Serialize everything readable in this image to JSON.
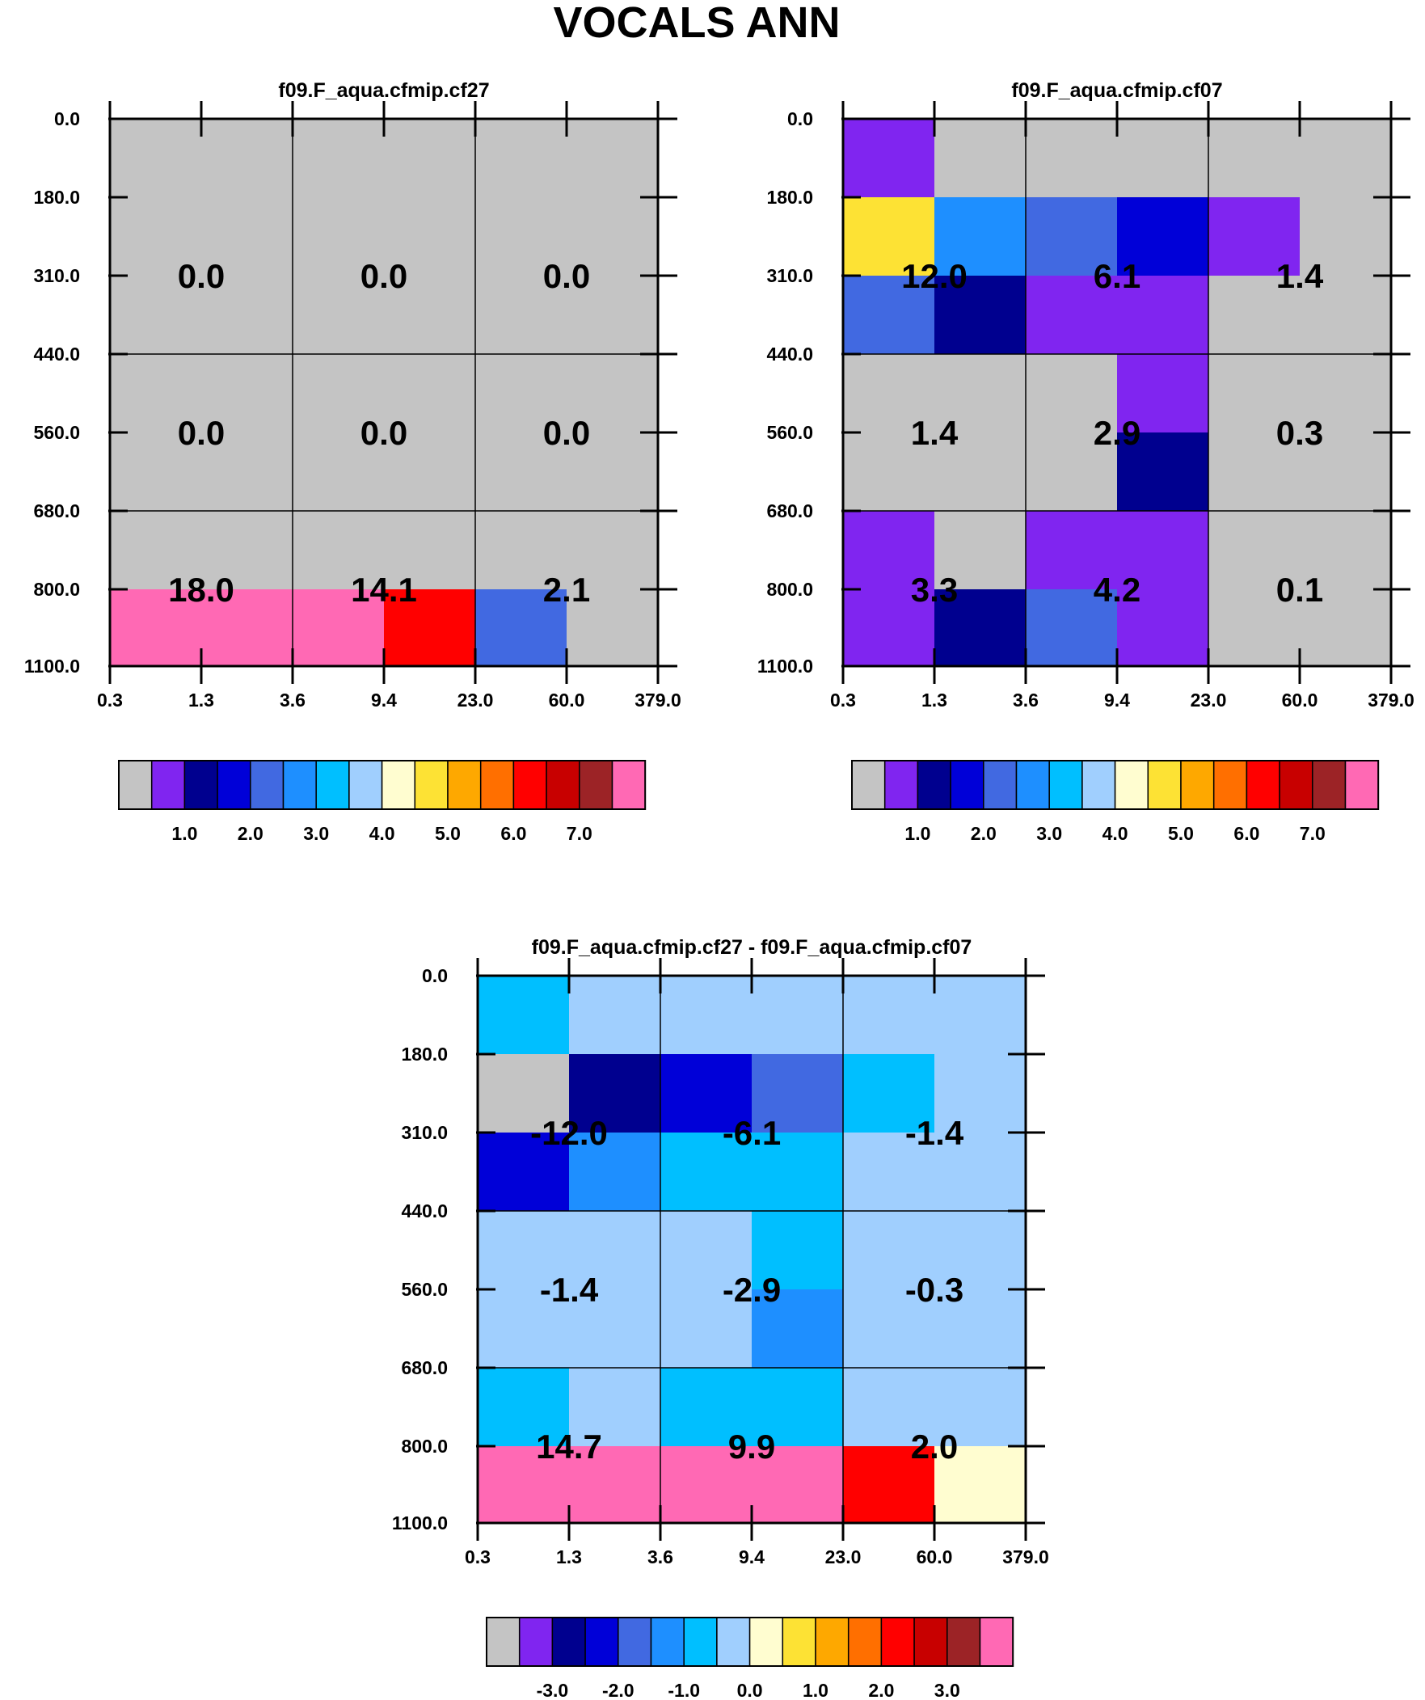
{
  "title": "VOCALS ANN",
  "chart_data": [
    {
      "type": "heatmap",
      "title": "f09.F_aqua.cfmip.cf27",
      "y_ticks": [
        "0.0",
        "180.0",
        "310.0",
        "440.0",
        "560.0",
        "680.0",
        "800.0",
        "1100.0"
      ],
      "x_ticks": [
        "0.3",
        "1.3",
        "3.6",
        "9.4",
        "23.0",
        "60.0",
        "379.0"
      ],
      "fine_colors": [
        [
          0,
          0,
          0,
          0,
          0,
          0
        ],
        [
          0,
          0,
          0,
          0,
          0,
          0
        ],
        [
          0,
          0,
          0,
          0,
          0,
          0
        ],
        [
          0,
          0,
          0,
          0,
          0,
          0
        ],
        [
          0,
          0,
          0,
          0,
          0,
          0
        ],
        [
          0,
          0,
          0,
          0,
          0,
          0
        ],
        [
          15,
          15,
          15,
          12,
          4,
          0
        ]
      ],
      "summary_values": [
        [
          "0.0",
          "0.0",
          "0.0"
        ],
        [
          "0.0",
          "0.0",
          "0.0"
        ],
        [
          "18.0",
          "14.1",
          "2.1"
        ]
      ],
      "colorbar_labels": [
        "1.0",
        "2.0",
        "3.0",
        "4.0",
        "5.0",
        "6.0",
        "7.0"
      ],
      "colorbar_colors": [
        "#c4c4c4",
        "#8025f0",
        "#00008f",
        "#0000d8",
        "#4169e1",
        "#1e8fff",
        "#00bfff",
        "#a0cffe",
        "#fffdd0",
        "#fde234",
        "#fea800",
        "#ff6f00",
        "#ff0000",
        "#c80000",
        "#9c2326",
        "#ff69b4"
      ]
    },
    {
      "type": "heatmap",
      "title": "f09.F_aqua.cfmip.cf07",
      "y_ticks": [
        "0.0",
        "180.0",
        "310.0",
        "440.0",
        "560.0",
        "680.0",
        "800.0",
        "1100.0"
      ],
      "x_ticks": [
        "0.3",
        "1.3",
        "3.6",
        "9.4",
        "23.0",
        "60.0",
        "379.0"
      ],
      "fine_colors": [
        [
          1,
          0,
          0,
          0,
          0,
          0
        ],
        [
          9,
          5,
          4,
          3,
          1,
          0
        ],
        [
          4,
          2,
          1,
          1,
          0,
          0
        ],
        [
          0,
          0,
          0,
          1,
          0,
          0
        ],
        [
          0,
          0,
          0,
          2,
          0,
          0
        ],
        [
          1,
          0,
          1,
          1,
          0,
          0
        ],
        [
          1,
          2,
          4,
          1,
          0,
          0
        ]
      ],
      "summary_values": [
        [
          "12.0",
          "6.1",
          "1.4"
        ],
        [
          "1.4",
          "2.9",
          "0.3"
        ],
        [
          "3.3",
          "4.2",
          "0.1"
        ]
      ],
      "colorbar_labels": [
        "1.0",
        "2.0",
        "3.0",
        "4.0",
        "5.0",
        "6.0",
        "7.0"
      ],
      "colorbar_colors": [
        "#c4c4c4",
        "#8025f0",
        "#00008f",
        "#0000d8",
        "#4169e1",
        "#1e8fff",
        "#00bfff",
        "#a0cffe",
        "#fffdd0",
        "#fde234",
        "#fea800",
        "#ff6f00",
        "#ff0000",
        "#c80000",
        "#9c2326",
        "#ff69b4"
      ]
    },
    {
      "type": "heatmap",
      "title": "f09.F_aqua.cfmip.cf27 - f09.F_aqua.cfmip.cf07",
      "y_ticks": [
        "0.0",
        "180.0",
        "310.0",
        "440.0",
        "560.0",
        "680.0",
        "800.0",
        "1100.0"
      ],
      "x_ticks": [
        "0.3",
        "1.3",
        "3.6",
        "9.4",
        "23.0",
        "60.0",
        "379.0"
      ],
      "fine_colors": [
        [
          6,
          7,
          7,
          7,
          7,
          7
        ],
        [
          0,
          2,
          3,
          4,
          6,
          7
        ],
        [
          3,
          5,
          6,
          6,
          7,
          7
        ],
        [
          7,
          7,
          7,
          6,
          7,
          7
        ],
        [
          7,
          7,
          7,
          5,
          7,
          7
        ],
        [
          6,
          7,
          6,
          6,
          7,
          7
        ],
        [
          15,
          15,
          15,
          15,
          12,
          8
        ]
      ],
      "summary_values": [
        [
          "-12.0",
          "-6.1",
          "-1.4"
        ],
        [
          "-1.4",
          "-2.9",
          "-0.3"
        ],
        [
          "14.7",
          "9.9",
          "2.0"
        ]
      ],
      "colorbar_labels": [
        "-3.0",
        "-2.0",
        "-1.0",
        "0.0",
        "1.0",
        "2.0",
        "3.0"
      ],
      "colorbar_colors": [
        "#c4c4c4",
        "#8025f0",
        "#00008f",
        "#0000d8",
        "#4169e1",
        "#1e8fff",
        "#00bfff",
        "#a0cffe",
        "#fffdd0",
        "#fde234",
        "#fea800",
        "#ff6f00",
        "#ff0000",
        "#c80000",
        "#9c2326",
        "#ff69b4"
      ]
    }
  ]
}
